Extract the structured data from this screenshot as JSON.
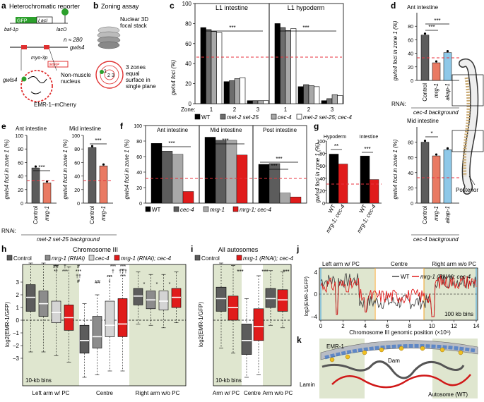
{
  "colors": {
    "wt": "#000000",
    "met2": "#6d6d6d",
    "cec4": "#a8a8a8",
    "double": "#ffffff",
    "mrg1": "#e97a63",
    "akap1": "#8ec8e8",
    "red": "#e01b1b",
    "dgray": "#5c5c5c",
    "lgray": "#d4d4d4",
    "green": "#dfe6cf",
    "thresh": "#e8323c"
  },
  "panel_a": {
    "letter": "a",
    "title": "Heterochromatic reporter",
    "gfp": "GFP",
    "laci": "LacI",
    "baf": "baf-1p",
    "laco": "lacO",
    "n": "n ≈ 280",
    "gwls4": "gwls4",
    "myo": "myo-3p",
    "rfp": "RFP",
    "gwls4_b": "gwls4",
    "nonmuscle": "Non-muscle",
    "nucleus": "nucleus",
    "emr": "EMR-1–mCherry"
  },
  "panel_b": {
    "letter": "b",
    "title": "Zoning assay",
    "sub1": "Nuclear 3D",
    "sub2": "focal stack",
    "zones": "3 zones",
    "eq": "equal",
    "surface": "surface in",
    "plane": "single plane",
    "z1": "1",
    "z2": "2",
    "z3": "3"
  },
  "chart_data": [
    {
      "type": "bar",
      "panel": "c",
      "subplots": [
        "L1 intestine",
        "L1 hypoderm"
      ],
      "ylabel": "gwIs4 foci (%)",
      "xlabel": "Zone:",
      "categories": [
        "1",
        "2",
        "3"
      ],
      "ylim": [
        0,
        100
      ],
      "yticks": [
        "0",
        "20",
        "40",
        "60",
        "80",
        "100"
      ],
      "threshold": 33,
      "sig": "***",
      "series": [
        {
          "name": "WT",
          "intestine": [
            76,
            22,
            3
          ],
          "hypoderm": [
            80,
            17,
            3
          ]
        },
        {
          "name": "met-2 set-25",
          "intestine": [
            74,
            23,
            3
          ],
          "hypoderm": [
            76,
            19,
            5
          ]
        },
        {
          "name": "cec-4",
          "intestine": [
            72,
            25,
            3
          ],
          "hypoderm": [
            73,
            18,
            9
          ]
        },
        {
          "name": "met-2 set-25; cec-4",
          "intestine": [
            71,
            26,
            3
          ],
          "hypoderm": [
            75,
            17,
            8
          ]
        }
      ]
    },
    {
      "type": "bar",
      "panel": "d",
      "subplots": [
        "Ant intestine",
        "Mid intestine"
      ],
      "ylabel": "gwIs4 foci in zone 1 (%)",
      "categories": [
        "Control",
        "mrg-1",
        "akap-1"
      ],
      "ylim": [
        0,
        100
      ],
      "yticks": [
        "0",
        "20",
        "40",
        "60",
        "80"
      ],
      "ant_values": [
        67,
        26,
        41
      ],
      "mid_values": [
        80,
        62,
        70
      ],
      "rnai": "RNAi:",
      "background": "cec-4 background",
      "sig_ant": [
        "***",
        "***"
      ],
      "sig_mid": [
        "*"
      ]
    },
    {
      "type": "bar",
      "panel": "e",
      "subplots": [
        "Ant intestine",
        "Mid intestine"
      ],
      "ylabel": "gwIs4 foci in zone 1 (%)",
      "categories": [
        "Control",
        "mrg-1"
      ],
      "ylim": [
        0,
        100
      ],
      "yticks": [
        "0",
        "20",
        "40",
        "60",
        "80",
        "100"
      ],
      "ant_values": [
        52,
        30
      ],
      "mid_values": [
        82,
        55
      ],
      "rnai": "RNAi:",
      "background": "met-2 set-25 background",
      "sig": [
        "***",
        "***"
      ]
    },
    {
      "type": "bar",
      "panel": "f",
      "subplots": [
        "Ant intestine",
        "Mid intestine",
        "Post intestine"
      ],
      "ylabel": "gwIs4 foci in zone 1 (%)",
      "ylim": [
        0,
        100
      ],
      "yticks": [
        "0",
        "20",
        "40",
        "60",
        "80",
        "100"
      ],
      "series": [
        {
          "name": "WT",
          "values": [
            77,
            85,
            50
          ]
        },
        {
          "name": "cec-4",
          "values": [
            67,
            81,
            51
          ]
        },
        {
          "name": "mrg-1",
          "values": [
            63,
            81,
            13
          ]
        },
        {
          "name": "mrg-1; cec-4",
          "values": [
            15,
            62,
            8
          ]
        }
      ],
      "sig": [
        "***",
        "***",
        "***",
        "***"
      ]
    },
    {
      "type": "bar",
      "panel": "g",
      "subplots": [
        "Hypoderm",
        "Intestine"
      ],
      "ylabel": "gwIs4 foci in zone 1 (%)",
      "categories": [
        "WT",
        "mrg-1; cec-4"
      ],
      "ylim": [
        0,
        100
      ],
      "yticks": [
        "0",
        "20",
        "40",
        "60",
        "80",
        "100"
      ],
      "hypoderm": [
        79,
        63
      ],
      "intestine": [
        76,
        38
      ],
      "sig": [
        "**",
        "***"
      ]
    },
    {
      "type": "box",
      "panel": "h",
      "title": "Chromosome III",
      "ylabel": "log2(EMR-1/GFP)",
      "yticks": [
        "−3",
        "−2",
        "−1",
        "0",
        "1",
        "2",
        "3"
      ],
      "groups": [
        "Left arm w/ PC",
        "Centre",
        "Right arm w/o PC"
      ],
      "bins": "10-kb bins",
      "series": [
        {
          "name": "Control"
        },
        {
          "name": "mrg-1 (RNAi)"
        },
        {
          "name": "cec-4"
        },
        {
          "name": "mrg-1 (RNAi); cec-4"
        }
      ],
      "boxes": [
        {
          "q1": 0.7,
          "med": 1.8,
          "q3": 2.8,
          "lo": -2.5,
          "hi": 4.5
        },
        {
          "q1": 0.3,
          "med": 1.3,
          "q3": 2.3,
          "lo": -2.5,
          "hi": 4.5
        },
        {
          "q1": -0.2,
          "med": 0.6,
          "q3": 1.5,
          "lo": -2.8,
          "hi": 4.3
        },
        {
          "q1": -0.8,
          "med": 0.2,
          "q3": 1.2,
          "lo": -3.3,
          "hi": 4.2
        },
        {
          "q1": -2.6,
          "med": -1.6,
          "q3": -0.4,
          "lo": -4.5,
          "hi": 1.3
        },
        {
          "q1": -2.2,
          "med": -1.3,
          "q3": 0.3,
          "lo": -4.3,
          "hi": 2.0
        },
        {
          "q1": -1.3,
          "med": -0.4,
          "q3": 1.5,
          "lo": -4.0,
          "hi": 3.5
        },
        {
          "q1": -1.3,
          "med": -0.3,
          "q3": 1.7,
          "lo": -4.0,
          "hi": 4.0
        },
        {
          "q1": 1.2,
          "med": 1.9,
          "q3": 2.5,
          "lo": -0.3,
          "hi": 3.8
        },
        {
          "q1": 0.9,
          "med": 1.6,
          "q3": 2.3,
          "lo": -0.4,
          "hi": 3.6
        },
        {
          "q1": 0.8,
          "med": 1.5,
          "q3": 2.3,
          "lo": -0.6,
          "hi": 3.6
        },
        {
          "q1": 1.0,
          "med": 1.8,
          "q3": 2.5,
          "lo": -0.2,
          "hi": 3.8
        }
      ],
      "sig_labels": [
        "##",
        "**",
        "†",
        "***",
        "#",
        "***",
        "††",
        "#",
        "***",
        "*",
        "##",
        "***",
        "†",
        "***",
        "†††",
        "***",
        "*",
        "*",
        "*"
      ]
    },
    {
      "type": "box",
      "panel": "i",
      "title": "All autosomes",
      "ylabel": "log2(EMR-1/GFP)",
      "groups": [
        "Arm w/ PC",
        "Centre",
        "Arm w/o PC"
      ],
      "bins": "10-kb bins",
      "series": [
        {
          "name": "Control"
        },
        {
          "name": "mrg-1 (RNAi); cec-4"
        }
      ],
      "boxes": [
        {
          "q1": 0.7,
          "med": 1.7,
          "q3": 2.6,
          "lo": -2.2,
          "hi": 4.5
        },
        {
          "q1": 0.0,
          "med": 1.0,
          "q3": 1.9,
          "lo": -2.6,
          "hi": 4.3
        },
        {
          "q1": -2.7,
          "med": -1.6,
          "q3": -0.3,
          "lo": -4.5,
          "hi": 1.7
        },
        {
          "q1": -1.6,
          "med": -0.5,
          "q3": 0.9,
          "lo": -4.3,
          "hi": 3.5
        },
        {
          "q1": 1.0,
          "med": 1.7,
          "q3": 2.5,
          "lo": -0.4,
          "hi": 3.9
        },
        {
          "q1": 0.7,
          "med": 1.6,
          "q3": 2.4,
          "lo": -0.6,
          "hi": 3.8
        }
      ],
      "sig": [
        "***",
        "***",
        "***"
      ]
    },
    {
      "type": "line",
      "panel": "j",
      "regions": [
        "Left arm w/ PC",
        "Centre",
        "Right arm w/o PC"
      ],
      "xlabel": "Chromosome III genomic position (×10⁶)",
      "ylabel": "log2(EMR-1/GFP)",
      "xticks": [
        "0",
        "2",
        "4",
        "6",
        "8",
        "10",
        "12",
        "14"
      ],
      "yticks": [
        "−4",
        "0",
        "4"
      ],
      "bins": "100 kb bins",
      "series": [
        {
          "name": "WT"
        },
        {
          "name": "mrg-1 (RNAi); cec-4"
        }
      ]
    }
  ],
  "panel_d_side": {
    "l1": "L1",
    "posterior": "Posterior"
  },
  "panel_h": {
    "letter": "h"
  },
  "panel_i": {
    "letter": "i"
  },
  "panel_j": {
    "letter": "j"
  },
  "panel_k": {
    "letter": "k",
    "emr": "EMR-1",
    "dam": "Dam",
    "lamin": "Lamin",
    "autosome": "Autosome (WT)"
  }
}
